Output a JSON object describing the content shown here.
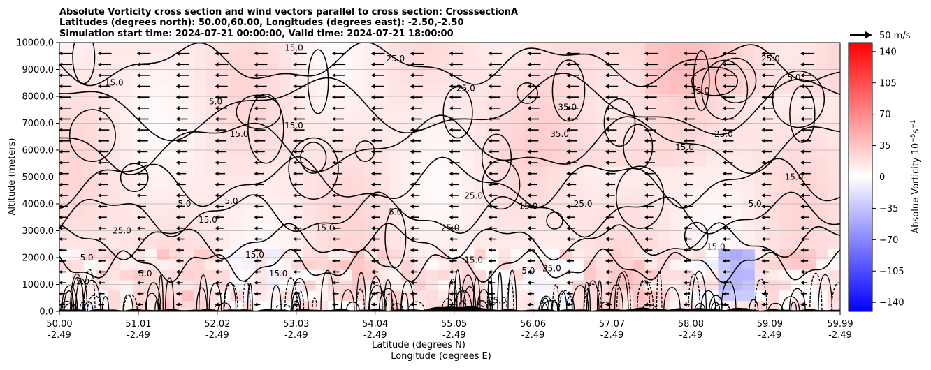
{
  "chart_data": {
    "type": "heatmap",
    "title_lines": [
      "Absolute Vorticity cross section and wind vectors parallel to cross section: CrosssectionA",
      "Latitudes (degrees north): 50.00,60.00, Longitudes (degrees east): -2.50,-2.50",
      "Simulation start time: 2024-07-21 00:00:00, Valid time: 2024-07-21 18:00:00"
    ],
    "xlabel_line1": "Latitude (degrees N)",
    "xlabel_line2": "Longitude (degrees E)",
    "ylabel": "Altitude (meters)",
    "xlim": [
      50.0,
      59.99
    ],
    "ylim": [
      0,
      10000
    ],
    "x_ticks": [
      {
        "lat": "50.00",
        "lon": "-2.49",
        "value": 50.0
      },
      {
        "lat": "51.01",
        "lon": "-2.49",
        "value": 51.01
      },
      {
        "lat": "52.02",
        "lon": "-2.49",
        "value": 52.02
      },
      {
        "lat": "53.03",
        "lon": "-2.49",
        "value": 53.03
      },
      {
        "lat": "54.04",
        "lon": "-2.49",
        "value": 54.04
      },
      {
        "lat": "55.05",
        "lon": "-2.49",
        "value": 55.05
      },
      {
        "lat": "56.06",
        "lon": "-2.49",
        "value": 56.06
      },
      {
        "lat": "57.07",
        "lon": "-2.49",
        "value": 57.07
      },
      {
        "lat": "58.08",
        "lon": "-2.49",
        "value": 58.08
      },
      {
        "lat": "59.09",
        "lon": "-2.49",
        "value": 59.09
      },
      {
        "lat": "59.99",
        "lon": "-2.49",
        "value": 59.99
      }
    ],
    "y_ticks": [
      {
        "label": "0.0",
        "value": 0
      },
      {
        "label": "1000.0",
        "value": 1000
      },
      {
        "label": "2000.0",
        "value": 2000
      },
      {
        "label": "3000.0",
        "value": 3000
      },
      {
        "label": "4000.0",
        "value": 4000
      },
      {
        "label": "5000.0",
        "value": 5000
      },
      {
        "label": "6000.0",
        "value": 6000
      },
      {
        "label": "7000.0",
        "value": 7000
      },
      {
        "label": "8000.0",
        "value": 8000
      },
      {
        "label": "9000.0",
        "value": 9000
      },
      {
        "label": "10000.0",
        "value": 10000
      }
    ],
    "grid": "horizontal",
    "colorbar": {
      "label": "Absolue Vorticity 10",
      "label_exponent": "−5",
      "label_unit": "s",
      "label_unit_exponent": "−1",
      "range": [
        -150,
        150
      ],
      "ticks": [
        {
          "label": "140",
          "value": 140
        },
        {
          "label": "105",
          "value": 105
        },
        {
          "label": "70",
          "value": 70
        },
        {
          "label": "35",
          "value": 35
        },
        {
          "label": "0",
          "value": 0
        },
        {
          "label": "−35",
          "value": -35
        },
        {
          "label": "−70",
          "value": -70
        },
        {
          "label": "−105",
          "value": -105
        },
        {
          "label": "−140",
          "value": -140
        }
      ],
      "colors": {
        "low": "#0000ff",
        "mid": "#ffffff",
        "high": "#ff0000"
      }
    },
    "quiver_key": {
      "label": "50 m/s",
      "speed": 50
    },
    "wind_field": {
      "direction": "parallel to section, pointing toward lower latitude",
      "upper_speed_ms": 10,
      "lower_speed_ms": 3
    },
    "contour_levels": [
      "5.0",
      "15.0",
      "25.0",
      "35.0"
    ],
    "contour_labels": [
      {
        "text": "15.0",
        "lat": 50.7,
        "alt": 8400
      },
      {
        "text": "15.0",
        "lat": 53.0,
        "alt": 9700
      },
      {
        "text": "25.0",
        "lat": 54.3,
        "alt": 9300
      },
      {
        "text": "5.0",
        "lat": 52.0,
        "alt": 7700
      },
      {
        "text": "15.0",
        "lat": 52.3,
        "alt": 6500
      },
      {
        "text": "15.0",
        "lat": 53.0,
        "alt": 6800
      },
      {
        "text": "35.0",
        "lat": 56.4,
        "alt": 6500
      },
      {
        "text": "35.0",
        "lat": 56.5,
        "alt": 7500
      },
      {
        "text": "25.0",
        "lat": 55.2,
        "alt": 8200
      },
      {
        "text": "15.0",
        "lat": 58.0,
        "alt": 6000
      },
      {
        "text": "35.0",
        "lat": 58.2,
        "alt": 8100
      },
      {
        "text": "25.0",
        "lat": 58.5,
        "alt": 6500
      },
      {
        "text": "5.0",
        "lat": 52.2,
        "alt": 4000
      },
      {
        "text": "5.0",
        "lat": 51.6,
        "alt": 3900
      },
      {
        "text": "25.0",
        "lat": 50.8,
        "alt": 2900
      },
      {
        "text": "15.0",
        "lat": 51.9,
        "alt": 3300
      },
      {
        "text": "15.0",
        "lat": 53.4,
        "alt": 3000
      },
      {
        "text": "25.0",
        "lat": 55.0,
        "alt": 3000
      },
      {
        "text": "15.0",
        "lat": 56.0,
        "alt": 3800
      },
      {
        "text": "25.0",
        "lat": 56.7,
        "alt": 3900
      },
      {
        "text": "5.0",
        "lat": 54.3,
        "alt": 3600
      },
      {
        "text": "25.0",
        "lat": 55.3,
        "alt": 4200
      },
      {
        "text": "15.0",
        "lat": 59.4,
        "alt": 4900
      },
      {
        "text": "5.0",
        "lat": 50.35,
        "alt": 1900
      },
      {
        "text": "15.0",
        "lat": 52.5,
        "alt": 2000
      },
      {
        "text": "15.0",
        "lat": 55.3,
        "alt": 1800
      },
      {
        "text": "5.0",
        "lat": 56.0,
        "alt": 1400
      },
      {
        "text": "25.0",
        "lat": 56.3,
        "alt": 1500
      },
      {
        "text": "15.0",
        "lat": 58.4,
        "alt": 2300
      },
      {
        "text": "5.0",
        "lat": 58.9,
        "alt": 3900
      },
      {
        "text": "5.0",
        "lat": 51.1,
        "alt": 1300
      },
      {
        "text": "25.0",
        "lat": 55.6,
        "alt": 300
      },
      {
        "text": "5.0",
        "lat": 59.4,
        "alt": 8600
      },
      {
        "text": "25.0",
        "lat": 59.1,
        "alt": 9300
      },
      {
        "text": "15.0",
        "lat": 52.8,
        "alt": 1300
      },
      {
        "text": "5.0",
        "lat": 50.3,
        "alt": 1000
      }
    ]
  }
}
